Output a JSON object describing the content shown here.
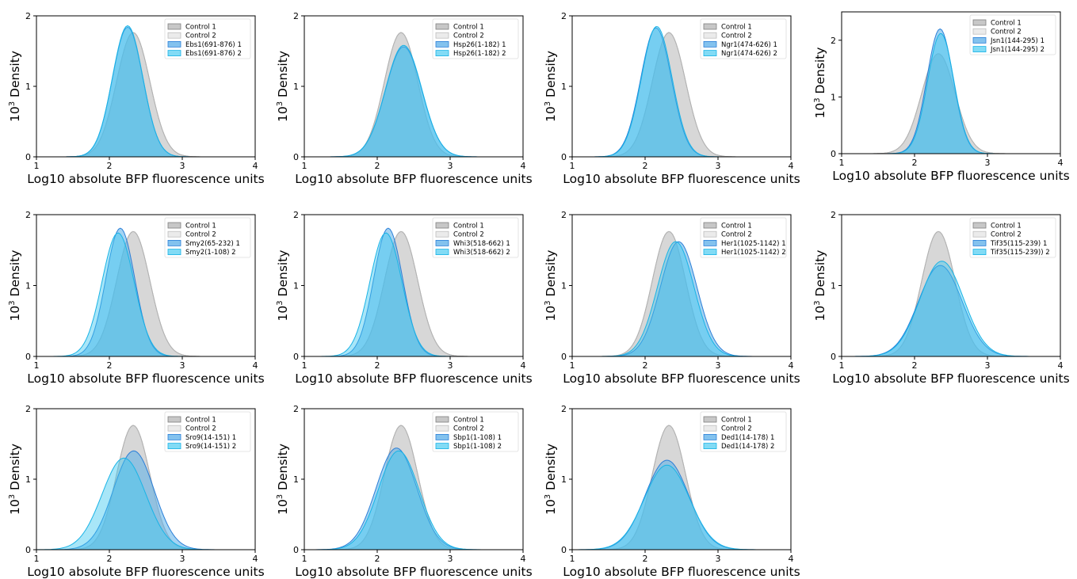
{
  "figure": {
    "xlabel": "Log10 absolute BFP fluorescence units",
    "ylabel_base": "10",
    "ylabel_sup": "3",
    "ylabel_rest": " Density"
  },
  "colors": {
    "control1_fill": "#b4b4b4",
    "control1_line": "#808080",
    "control2_fill": "#dadada",
    "control2_line": "#bdbdbd",
    "sample1_fill": "#5aaee8",
    "sample1_line": "#2b7fd8",
    "sample2_fill": "#3fc8f0",
    "sample2_line": "#19b3e6"
  },
  "chart_data": [
    {
      "type": "area",
      "xlabel": "Log10 absolute BFP fluorescence units",
      "ylabel": "10^3 Density",
      "xlim": [
        1,
        4
      ],
      "ylim": [
        0,
        2
      ],
      "xticks": [
        1,
        2,
        3,
        4
      ],
      "yticks": [
        0,
        1,
        2
      ],
      "legend": "top-right",
      "series": [
        {
          "name": "Control 1",
          "mean": 2.3,
          "sd": 0.23,
          "peak": 1.75,
          "skew": 0.12
        },
        {
          "name": "Control 2",
          "mean": 2.3,
          "sd": 0.23,
          "peak": 1.75,
          "skew": 0.12
        },
        {
          "name": "Ebs1(691-876) 1",
          "mean": 2.23,
          "sd": 0.21,
          "peak": 1.83,
          "skew": 0.1
        },
        {
          "name": "Ebs1(691-876) 2",
          "mean": 2.23,
          "sd": 0.21,
          "peak": 1.85,
          "skew": 0.1
        }
      ]
    },
    {
      "type": "area",
      "xlabel": "Log10 absolute BFP fluorescence units",
      "ylabel": "10^3 Density",
      "xlim": [
        1,
        4
      ],
      "ylim": [
        0,
        2
      ],
      "xticks": [
        1,
        2,
        3,
        4
      ],
      "yticks": [
        0,
        1,
        2
      ],
      "legend": "top-right",
      "series": [
        {
          "name": "Control 1",
          "mean": 2.3,
          "sd": 0.23,
          "peak": 1.75,
          "skew": 0.12
        },
        {
          "name": "Control 2",
          "mean": 2.3,
          "sd": 0.23,
          "peak": 1.75,
          "skew": 0.12
        },
        {
          "name": "Hsp26(1-182) 1",
          "mean": 2.35,
          "sd": 0.25,
          "peak": 1.56,
          "skew": 0.05
        },
        {
          "name": "Hsp26(1-182) 2",
          "mean": 2.35,
          "sd": 0.25,
          "peak": 1.58,
          "skew": 0.05
        }
      ]
    },
    {
      "type": "area",
      "xlabel": "Log10 absolute BFP fluorescence units",
      "ylabel": "10^3 Density",
      "xlim": [
        1,
        4
      ],
      "ylim": [
        0,
        2
      ],
      "xticks": [
        1,
        2,
        3,
        4
      ],
      "yticks": [
        0,
        1,
        2
      ],
      "legend": "top-right",
      "series": [
        {
          "name": "Control 1",
          "mean": 2.3,
          "sd": 0.23,
          "peak": 1.75,
          "skew": 0.12
        },
        {
          "name": "Control 2",
          "mean": 2.3,
          "sd": 0.23,
          "peak": 1.75,
          "skew": 0.12
        },
        {
          "name": "Ngr1(474-626) 1",
          "mean": 2.15,
          "sd": 0.21,
          "peak": 1.83,
          "skew": 0.0
        },
        {
          "name": "Ngr1(474-626) 2",
          "mean": 2.16,
          "sd": 0.21,
          "peak": 1.85,
          "skew": 0.0
        }
      ]
    },
    {
      "type": "area",
      "xlabel": "Log10 absolute BFP fluorescence units",
      "ylabel": "10^3 Density",
      "xlim": [
        1,
        4
      ],
      "ylim": [
        0,
        2.5
      ],
      "xticks": [
        1,
        2,
        3,
        4
      ],
      "yticks": [
        0,
        1,
        2
      ],
      "legend": "top-right",
      "series": [
        {
          "name": "Control 1",
          "mean": 2.3,
          "sd": 0.23,
          "peak": 1.75,
          "skew": 0.12
        },
        {
          "name": "Control 2",
          "mean": 2.3,
          "sd": 0.23,
          "peak": 1.75,
          "skew": 0.12
        },
        {
          "name": "Jsn1(144-295) 1",
          "mean": 2.35,
          "sd": 0.18,
          "peak": 2.2,
          "skew": 0.0
        },
        {
          "name": "Jsn1(144-295) 2",
          "mean": 2.36,
          "sd": 0.18,
          "peak": 2.12,
          "skew": 0.0
        }
      ]
    },
    {
      "type": "area",
      "xlabel": "Log10 absolute BFP fluorescence units",
      "ylabel": "10^3 Density",
      "xlim": [
        1,
        4
      ],
      "ylim": [
        0,
        2
      ],
      "xticks": [
        1,
        2,
        3,
        4
      ],
      "yticks": [
        0,
        1,
        2
      ],
      "legend": "top-right",
      "series": [
        {
          "name": "Control 1",
          "mean": 2.3,
          "sd": 0.23,
          "peak": 1.75,
          "skew": 0.12
        },
        {
          "name": "Control 2",
          "mean": 2.3,
          "sd": 0.23,
          "peak": 1.75,
          "skew": 0.12
        },
        {
          "name": "Smy2(65-232) 1",
          "mean": 2.17,
          "sd": 0.2,
          "peak": 1.8,
          "skew": -0.1
        },
        {
          "name": "Smy2(1-108) 2",
          "mean": 2.13,
          "sd": 0.22,
          "peak": 1.74,
          "skew": -0.05
        }
      ]
    },
    {
      "type": "area",
      "xlabel": "Log10 absolute BFP fluorescence units",
      "ylabel": "10^3 Density",
      "xlim": [
        1,
        4
      ],
      "ylim": [
        0,
        2
      ],
      "xticks": [
        1,
        2,
        3,
        4
      ],
      "yticks": [
        0,
        1,
        2
      ],
      "legend": "top-right",
      "series": [
        {
          "name": "Control 1",
          "mean": 2.3,
          "sd": 0.23,
          "peak": 1.75,
          "skew": 0.12
        },
        {
          "name": "Control 2",
          "mean": 2.3,
          "sd": 0.23,
          "peak": 1.75,
          "skew": 0.12
        },
        {
          "name": "Whi3(518-662) 1",
          "mean": 2.17,
          "sd": 0.2,
          "peak": 1.8,
          "skew": -0.1
        },
        {
          "name": "Whi3(518-662) 2",
          "mean": 2.13,
          "sd": 0.22,
          "peak": 1.74,
          "skew": -0.05
        }
      ]
    },
    {
      "type": "area",
      "xlabel": "Log10 absolute BFP fluorescence units",
      "ylabel": "10^3 Density",
      "xlim": [
        1,
        4
      ],
      "ylim": [
        0,
        2
      ],
      "xticks": [
        1,
        2,
        3,
        4
      ],
      "yticks": [
        0,
        1,
        2
      ],
      "legend": "top-right",
      "series": [
        {
          "name": "Control 1",
          "mean": 2.3,
          "sd": 0.23,
          "peak": 1.75,
          "skew": 0.12
        },
        {
          "name": "Control 2",
          "mean": 2.3,
          "sd": 0.23,
          "peak": 1.75,
          "skew": 0.12
        },
        {
          "name": "Her1(1025-1142) 1",
          "mean": 2.46,
          "sd": 0.25,
          "peak": 1.62,
          "skew": 0.0
        },
        {
          "name": "Her1(1025-1142) 2",
          "mean": 2.42,
          "sd": 0.25,
          "peak": 1.62,
          "skew": 0.0
        }
      ]
    },
    {
      "type": "area",
      "xlabel": "Log10 absolute BFP fluorescence units",
      "ylabel": "10^3 Density",
      "xlim": [
        1,
        4
      ],
      "ylim": [
        0,
        2
      ],
      "xticks": [
        1,
        2,
        3,
        4
      ],
      "yticks": [
        0,
        1,
        2
      ],
      "legend": "top-right",
      "series": [
        {
          "name": "Control 1",
          "mean": 2.3,
          "sd": 0.23,
          "peak": 1.75,
          "skew": 0.12
        },
        {
          "name": "Control 2",
          "mean": 2.3,
          "sd": 0.23,
          "peak": 1.75,
          "skew": 0.12
        },
        {
          "name": "Tif35(115-239) 1",
          "mean": 2.33,
          "sd": 0.3,
          "peak": 1.28,
          "skew": 0.08
        },
        {
          "name": "Tif35(115-239)) 2",
          "mean": 2.35,
          "sd": 0.3,
          "peak": 1.34,
          "skew": 0.08
        }
      ]
    },
    {
      "type": "area",
      "xlabel": "Log10 absolute BFP fluorescence units",
      "ylabel": "10^3 Density",
      "xlim": [
        1,
        4
      ],
      "ylim": [
        0,
        2
      ],
      "xticks": [
        1,
        2,
        3,
        4
      ],
      "yticks": [
        0,
        1,
        2
      ],
      "legend": "top-right",
      "series": [
        {
          "name": "Control 1",
          "mean": 2.3,
          "sd": 0.23,
          "peak": 1.75,
          "skew": 0.12
        },
        {
          "name": "Control 2",
          "mean": 2.3,
          "sd": 0.23,
          "peak": 1.75,
          "skew": 0.12
        },
        {
          "name": "Sro9(14-151) 1",
          "mean": 2.32,
          "sd": 0.28,
          "peak": 1.4,
          "skew": 0.05
        },
        {
          "name": "Sro9(14-151) 2",
          "mean": 2.2,
          "sd": 0.3,
          "peak": 1.3,
          "skew": 0.0
        }
      ]
    },
    {
      "type": "area",
      "xlabel": "Log10 absolute BFP fluorescence units",
      "ylabel": "10^3 Density",
      "xlim": [
        1,
        4
      ],
      "ylim": [
        0,
        2
      ],
      "xticks": [
        1,
        2,
        3,
        4
      ],
      "yticks": [
        0,
        1,
        2
      ],
      "legend": "top-right",
      "series": [
        {
          "name": "Control 1",
          "mean": 2.3,
          "sd": 0.23,
          "peak": 1.75,
          "skew": 0.12
        },
        {
          "name": "Control 2",
          "mean": 2.3,
          "sd": 0.23,
          "peak": 1.75,
          "skew": 0.12
        },
        {
          "name": "Sbp1(1-108) 1",
          "mean": 2.25,
          "sd": 0.28,
          "peak": 1.44,
          "skew": 0.05
        },
        {
          "name": "Sbp1(1-108) 2",
          "mean": 2.28,
          "sd": 0.28,
          "peak": 1.4,
          "skew": 0.05
        }
      ]
    },
    {
      "type": "area",
      "xlabel": "Log10 absolute BFP fluorescence units",
      "ylabel": "10^3 Density",
      "xlim": [
        1,
        4
      ],
      "ylim": [
        0,
        2
      ],
      "xticks": [
        1,
        2,
        3,
        4
      ],
      "yticks": [
        0,
        1,
        2
      ],
      "legend": "top-right",
      "series": [
        {
          "name": "Control 1",
          "mean": 2.3,
          "sd": 0.23,
          "peak": 1.75,
          "skew": 0.12
        },
        {
          "name": "Control 2",
          "mean": 2.3,
          "sd": 0.23,
          "peak": 1.75,
          "skew": 0.12
        },
        {
          "name": "Ded1(14-178) 1",
          "mean": 2.3,
          "sd": 0.3,
          "peak": 1.27,
          "skew": 0.0
        },
        {
          "name": "Ded1(14-178) 2",
          "mean": 2.3,
          "sd": 0.31,
          "peak": 1.2,
          "skew": 0.0
        }
      ]
    }
  ]
}
